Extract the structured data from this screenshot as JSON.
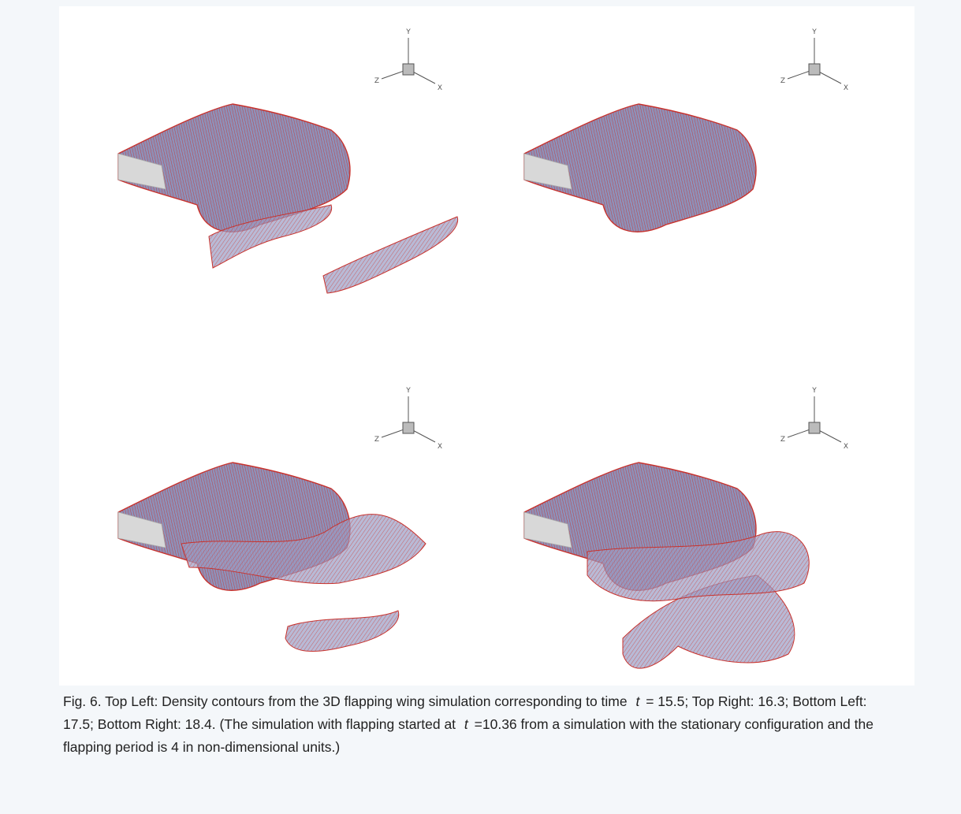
{
  "figure": {
    "panels": [
      {
        "y": "Y",
        "z": "Z",
        "x": "X"
      },
      {
        "y": "Y",
        "z": "Z",
        "x": "X"
      },
      {
        "y": "Y",
        "z": "Z",
        "x": "X"
      },
      {
        "y": "Y",
        "z": "Z",
        "x": "X"
      }
    ],
    "caption": [
      "Fig. 6. Top Left: Density contours from the 3D flapping wing simulation corresponding to time ",
      "t",
      " = 15.5; Top Right: 16.3; Bottom Left: 17.5; Bottom Right: 18.4. (The simulation with flapping started at ",
      "t",
      " =10.36 from a simulation with the stationary configuration and the flapping period is 4 in non-dimensional units.)"
    ]
  }
}
